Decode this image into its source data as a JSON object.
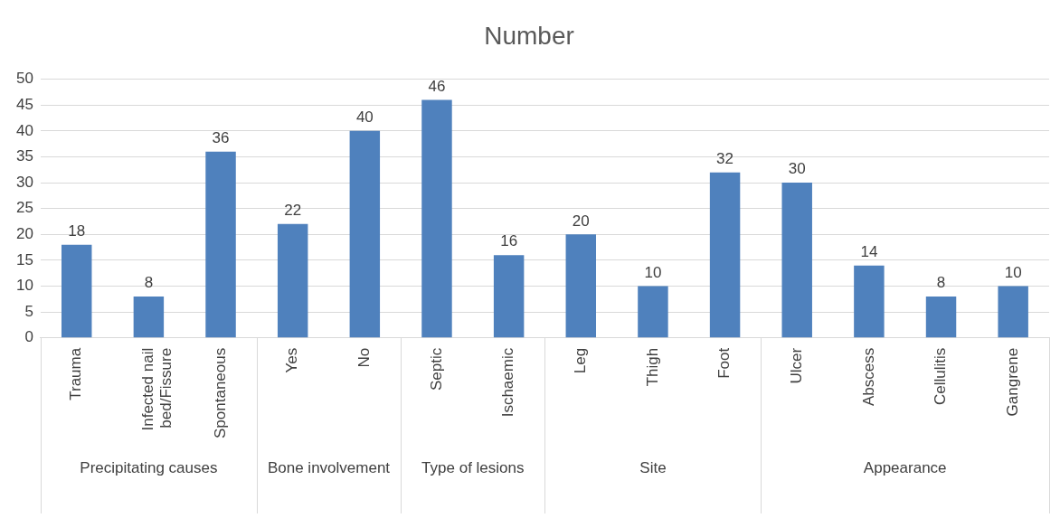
{
  "chart_data": {
    "type": "bar",
    "title": "Number",
    "categories": [
      "Trauma",
      "Infected nail bed/Fissure",
      "Spontaneous",
      "Yes",
      "No",
      "Septic",
      "Ischaemic",
      "Leg",
      "Thigh",
      "Foot",
      "Ulcer",
      "Abscess",
      "Cellulitis",
      "Gangrene"
    ],
    "values": [
      18,
      8,
      36,
      22,
      40,
      46,
      16,
      20,
      10,
      32,
      30,
      14,
      8,
      10
    ],
    "color": "#4f81bd",
    "ylim": [
      0,
      50
    ],
    "yticks": [
      0,
      5,
      10,
      15,
      20,
      25,
      30,
      35,
      40,
      45,
      50
    ],
    "grid": "y",
    "legend": false,
    "data_labels": true,
    "annotations": [
      "Precipitating causes",
      "Bone involvement",
      "Type of lesions",
      "Site",
      "Appearance"
    ]
  }
}
